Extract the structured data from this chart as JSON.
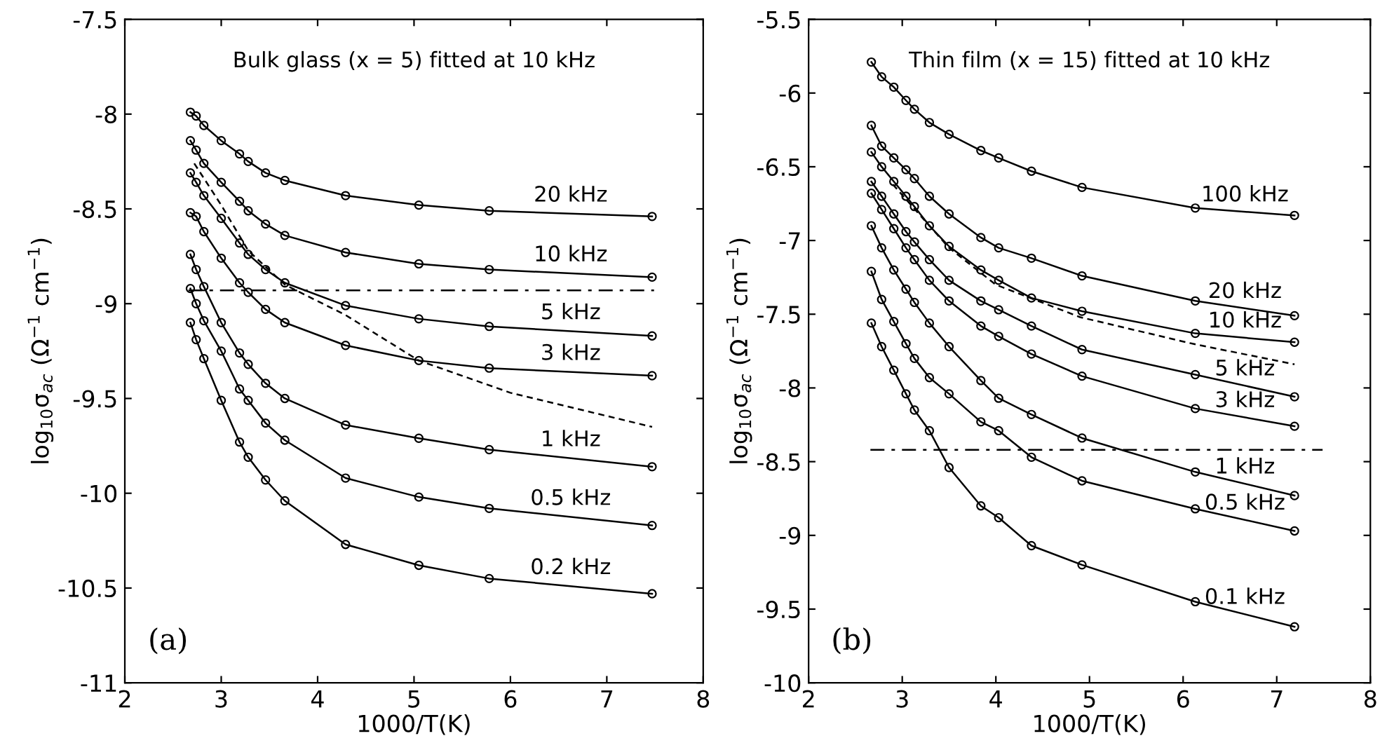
{
  "chart_data": [
    {
      "type": "line",
      "title": "Bulk glass (x = 5) fitted at 10 kHz",
      "xlabel": "1000/T(K)",
      "ylabel": "log$_{10}$σ$_{ac}$ (Ω$^{−1}$ cm$^{−1}$)",
      "x": [
        2.68,
        2.74,
        2.82,
        3.0,
        3.19,
        3.28,
        3.46,
        3.66,
        4.29,
        5.05,
        5.78,
        7.47
      ],
      "xlim": [
        2,
        8
      ],
      "ylim": [
        -11,
        -7.5
      ],
      "xticks": [
        2,
        3,
        4,
        5,
        6,
        7,
        8
      ],
      "yticks": [
        -11,
        -10.5,
        -10,
        -9.5,
        -9,
        -8.5,
        -8,
        -7.5
      ],
      "marker": "circle",
      "line_style": "solid",
      "grid": false,
      "legend": false,
      "series": [
        {
          "name": "20 kHz",
          "color": "#000000",
          "values": [
            -7.99,
            -8.01,
            -8.06,
            -8.14,
            -8.21,
            -8.25,
            -8.31,
            -8.35,
            -8.43,
            -8.48,
            -8.51,
            -8.54
          ]
        },
        {
          "name": "10 kHz",
          "color": "#000000",
          "values": [
            -8.14,
            -8.19,
            -8.26,
            -8.36,
            -8.46,
            -8.51,
            -8.58,
            -8.64,
            -8.73,
            -8.79,
            -8.82,
            -8.86
          ]
        },
        {
          "name": "5 kHz",
          "color": "#000000",
          "values": [
            -8.31,
            -8.36,
            -8.43,
            -8.55,
            -8.68,
            -8.74,
            -8.82,
            -8.89,
            -9.01,
            -9.08,
            -9.12,
            -9.17
          ]
        },
        {
          "name": "3 kHz",
          "color": "#000000",
          "values": [
            -8.52,
            -8.54,
            -8.62,
            -8.76,
            -8.89,
            -8.94,
            -9.03,
            -9.1,
            -9.22,
            -9.3,
            -9.34,
            -9.38
          ]
        },
        {
          "name": "1 kHz",
          "color": "#000000",
          "values": [
            -8.74,
            -8.82,
            -8.91,
            -9.1,
            -9.26,
            -9.32,
            -9.42,
            -9.5,
            -9.64,
            -9.71,
            -9.77,
            -9.86
          ]
        },
        {
          "name": "0.5 kHz",
          "color": "#000000",
          "values": [
            -8.92,
            -9.0,
            -9.09,
            -9.25,
            -9.45,
            -9.51,
            -9.63,
            -9.72,
            -9.92,
            -10.02,
            -10.08,
            -10.17
          ]
        },
        {
          "name": "0.2 kHz",
          "color": "#000000",
          "values": [
            -9.1,
            -9.19,
            -9.29,
            -9.51,
            -9.73,
            -9.81,
            -9.93,
            -10.04,
            -10.27,
            -10.38,
            -10.45,
            -10.53
          ]
        },
        {
          "color": "#000000",
          "marker": "none",
          "line_style": "dashed",
          "x": [
            2.72,
            3.0,
            3.28,
            3.66,
            4.29,
            5.05,
            6.0,
            7.47
          ],
          "values": [
            -8.26,
            -8.48,
            -8.72,
            -8.9,
            -9.06,
            -9.3,
            -9.47,
            -9.65
          ]
        }
      ],
      "ref_lines": [
        {
          "axis": "y",
          "value": -8.93,
          "color": "#000000",
          "line_style": "dashdot"
        }
      ],
      "annotations": [
        "(a)"
      ]
    },
    {
      "type": "line",
      "title": "Thin film (x = 15) fitted at 10 kHz",
      "xlabel": "1000/T(K)",
      "ylabel": "log$_{10}$σ$_{ac}$ (Ω$^{−1}$ cm$^{−1}$)",
      "x": [
        2.67,
        2.78,
        2.91,
        3.04,
        3.13,
        3.29,
        3.5,
        3.84,
        4.03,
        4.38,
        4.92,
        6.13,
        7.19
      ],
      "xlim": [
        2,
        8
      ],
      "ylim": [
        -10,
        -5.5
      ],
      "xticks": [
        2,
        3,
        4,
        5,
        6,
        7,
        8
      ],
      "yticks": [
        -10,
        -9.5,
        -9,
        -8.5,
        -8,
        -7.5,
        -7,
        -6.5,
        -6,
        -5.5
      ],
      "marker": "circle",
      "line_style": "solid",
      "grid": false,
      "legend": false,
      "series": [
        {
          "name": "100 kHz",
          "color": "#000000",
          "values": [
            -5.79,
            -5.89,
            -5.96,
            -6.05,
            -6.11,
            -6.2,
            -6.28,
            -6.39,
            -6.44,
            -6.53,
            -6.64,
            -6.78,
            -6.83
          ]
        },
        {
          "name": "20 kHz",
          "color": "#000000",
          "values": [
            -6.22,
            -6.36,
            -6.44,
            -6.52,
            -6.58,
            -6.7,
            -6.82,
            -6.98,
            -7.05,
            -7.12,
            -7.24,
            -7.41,
            -7.51
          ]
        },
        {
          "name": "10 kHz",
          "color": "#000000",
          "values": [
            -6.4,
            -6.5,
            -6.6,
            -6.7,
            -6.77,
            -6.9,
            -7.04,
            -7.2,
            -7.27,
            -7.39,
            -7.48,
            -7.63,
            -7.69
          ]
        },
        {
          "name": "5 kHz",
          "color": "#000000",
          "values": [
            -6.6,
            -6.7,
            -6.82,
            -6.94,
            -7.01,
            -7.13,
            -7.27,
            -7.41,
            -7.47,
            -7.58,
            -7.74,
            -7.91,
            -8.06
          ]
        },
        {
          "name": "3 kHz",
          "color": "#000000",
          "values": [
            -6.68,
            -6.79,
            -6.92,
            -7.05,
            -7.13,
            -7.27,
            -7.41,
            -7.58,
            -7.65,
            -7.77,
            -7.92,
            -8.14,
            -8.26
          ]
        },
        {
          "name": "1 kHz",
          "color": "#000000",
          "values": [
            -6.9,
            -7.05,
            -7.2,
            -7.33,
            -7.42,
            -7.56,
            -7.72,
            -7.95,
            -8.07,
            -8.18,
            -8.34,
            -8.57,
            -8.73
          ]
        },
        {
          "name": "0.5 kHz",
          "color": "#000000",
          "values": [
            -7.21,
            -7.4,
            -7.55,
            -7.7,
            -7.8,
            -7.93,
            -8.04,
            -8.23,
            -8.29,
            -8.47,
            -8.63,
            -8.82,
            -8.97
          ]
        },
        {
          "name": "0.1 kHz",
          "color": "#000000",
          "values": [
            -7.56,
            -7.72,
            -7.88,
            -8.04,
            -8.15,
            -8.29,
            -8.54,
            -8.8,
            -8.88,
            -9.07,
            -9.2,
            -9.45,
            -9.62
          ]
        },
        {
          "color": "#000000",
          "marker": "none",
          "line_style": "dashed",
          "x": [
            2.9,
            3.5,
            4.0,
            4.9,
            6.1,
            7.19
          ],
          "values": [
            -6.62,
            -7.05,
            -7.3,
            -7.52,
            -7.7,
            -7.84
          ]
        }
      ],
      "ref_lines": [
        {
          "axis": "y",
          "value": -8.42,
          "color": "#000000",
          "line_style": "dashdot"
        }
      ],
      "annotations": [
        "(b)"
      ]
    }
  ]
}
